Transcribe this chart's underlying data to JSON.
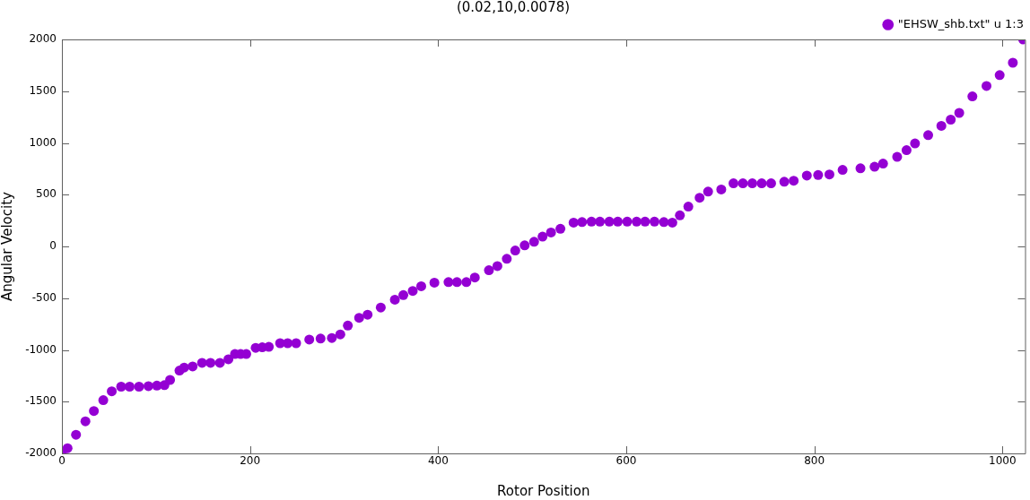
{
  "chart_data": {
    "type": "scatter",
    "title": "(0.02,10,0.0078)",
    "xlabel": "Rotor Position",
    "ylabel": "Angular Velocity",
    "xlim": [
      0,
      1024
    ],
    "xticks": [
      0,
      200,
      400,
      600,
      800,
      1000
    ],
    "ylim": [
      -2000,
      2000
    ],
    "yticks": [
      -2000,
      -1500,
      -1000,
      -500,
      0,
      500,
      1000,
      1500,
      2000
    ],
    "grid": false,
    "legend": "top right",
    "marker": "circle",
    "series": [
      {
        "name": "\"EHSW_shb.txt\" u 1:3",
        "color": "#9400d3",
        "x": [
          0,
          6,
          15,
          25,
          34,
          44,
          53,
          63,
          72,
          82,
          92,
          101,
          109,
          115,
          125,
          130,
          139,
          149,
          158,
          168,
          177,
          184,
          190,
          196,
          206,
          213,
          220,
          232,
          240,
          249,
          263,
          275,
          287,
          296,
          304,
          316,
          325,
          339,
          354,
          363,
          373,
          382,
          396,
          411,
          420,
          430,
          439,
          454,
          463,
          473,
          482,
          492,
          502,
          511,
          520,
          530,
          544,
          553,
          563,
          572,
          582,
          591,
          601,
          611,
          620,
          630,
          640,
          649,
          657,
          666,
          678,
          687,
          701,
          714,
          724,
          734,
          744,
          754,
          768,
          778,
          792,
          804,
          816,
          830,
          849,
          864,
          873,
          888,
          898,
          907,
          921,
          935,
          945,
          954,
          968,
          983,
          997,
          1011,
          1022
        ],
        "values": [
          -2000,
          -1950,
          -1820,
          -1690,
          -1590,
          -1485,
          -1400,
          -1355,
          -1355,
          -1355,
          -1350,
          -1345,
          -1340,
          -1290,
          -1200,
          -1170,
          -1160,
          -1125,
          -1125,
          -1125,
          -1090,
          -1040,
          -1040,
          -1040,
          -980,
          -975,
          -970,
          -935,
          -935,
          -935,
          -900,
          -890,
          -885,
          -850,
          -765,
          -690,
          -660,
          -590,
          -515,
          -470,
          -430,
          -385,
          -350,
          -345,
          -345,
          -345,
          -300,
          -230,
          -190,
          -120,
          -40,
          10,
          45,
          95,
          135,
          170,
          230,
          235,
          240,
          240,
          240,
          240,
          240,
          240,
          240,
          240,
          235,
          230,
          300,
          385,
          470,
          530,
          550,
          610,
          610,
          610,
          610,
          610,
          625,
          635,
          685,
          690,
          695,
          740,
          755,
          770,
          800,
          865,
          930,
          995,
          1075,
          1165,
          1225,
          1290,
          1450,
          1550,
          1655,
          1775,
          2000
        ]
      }
    ]
  }
}
